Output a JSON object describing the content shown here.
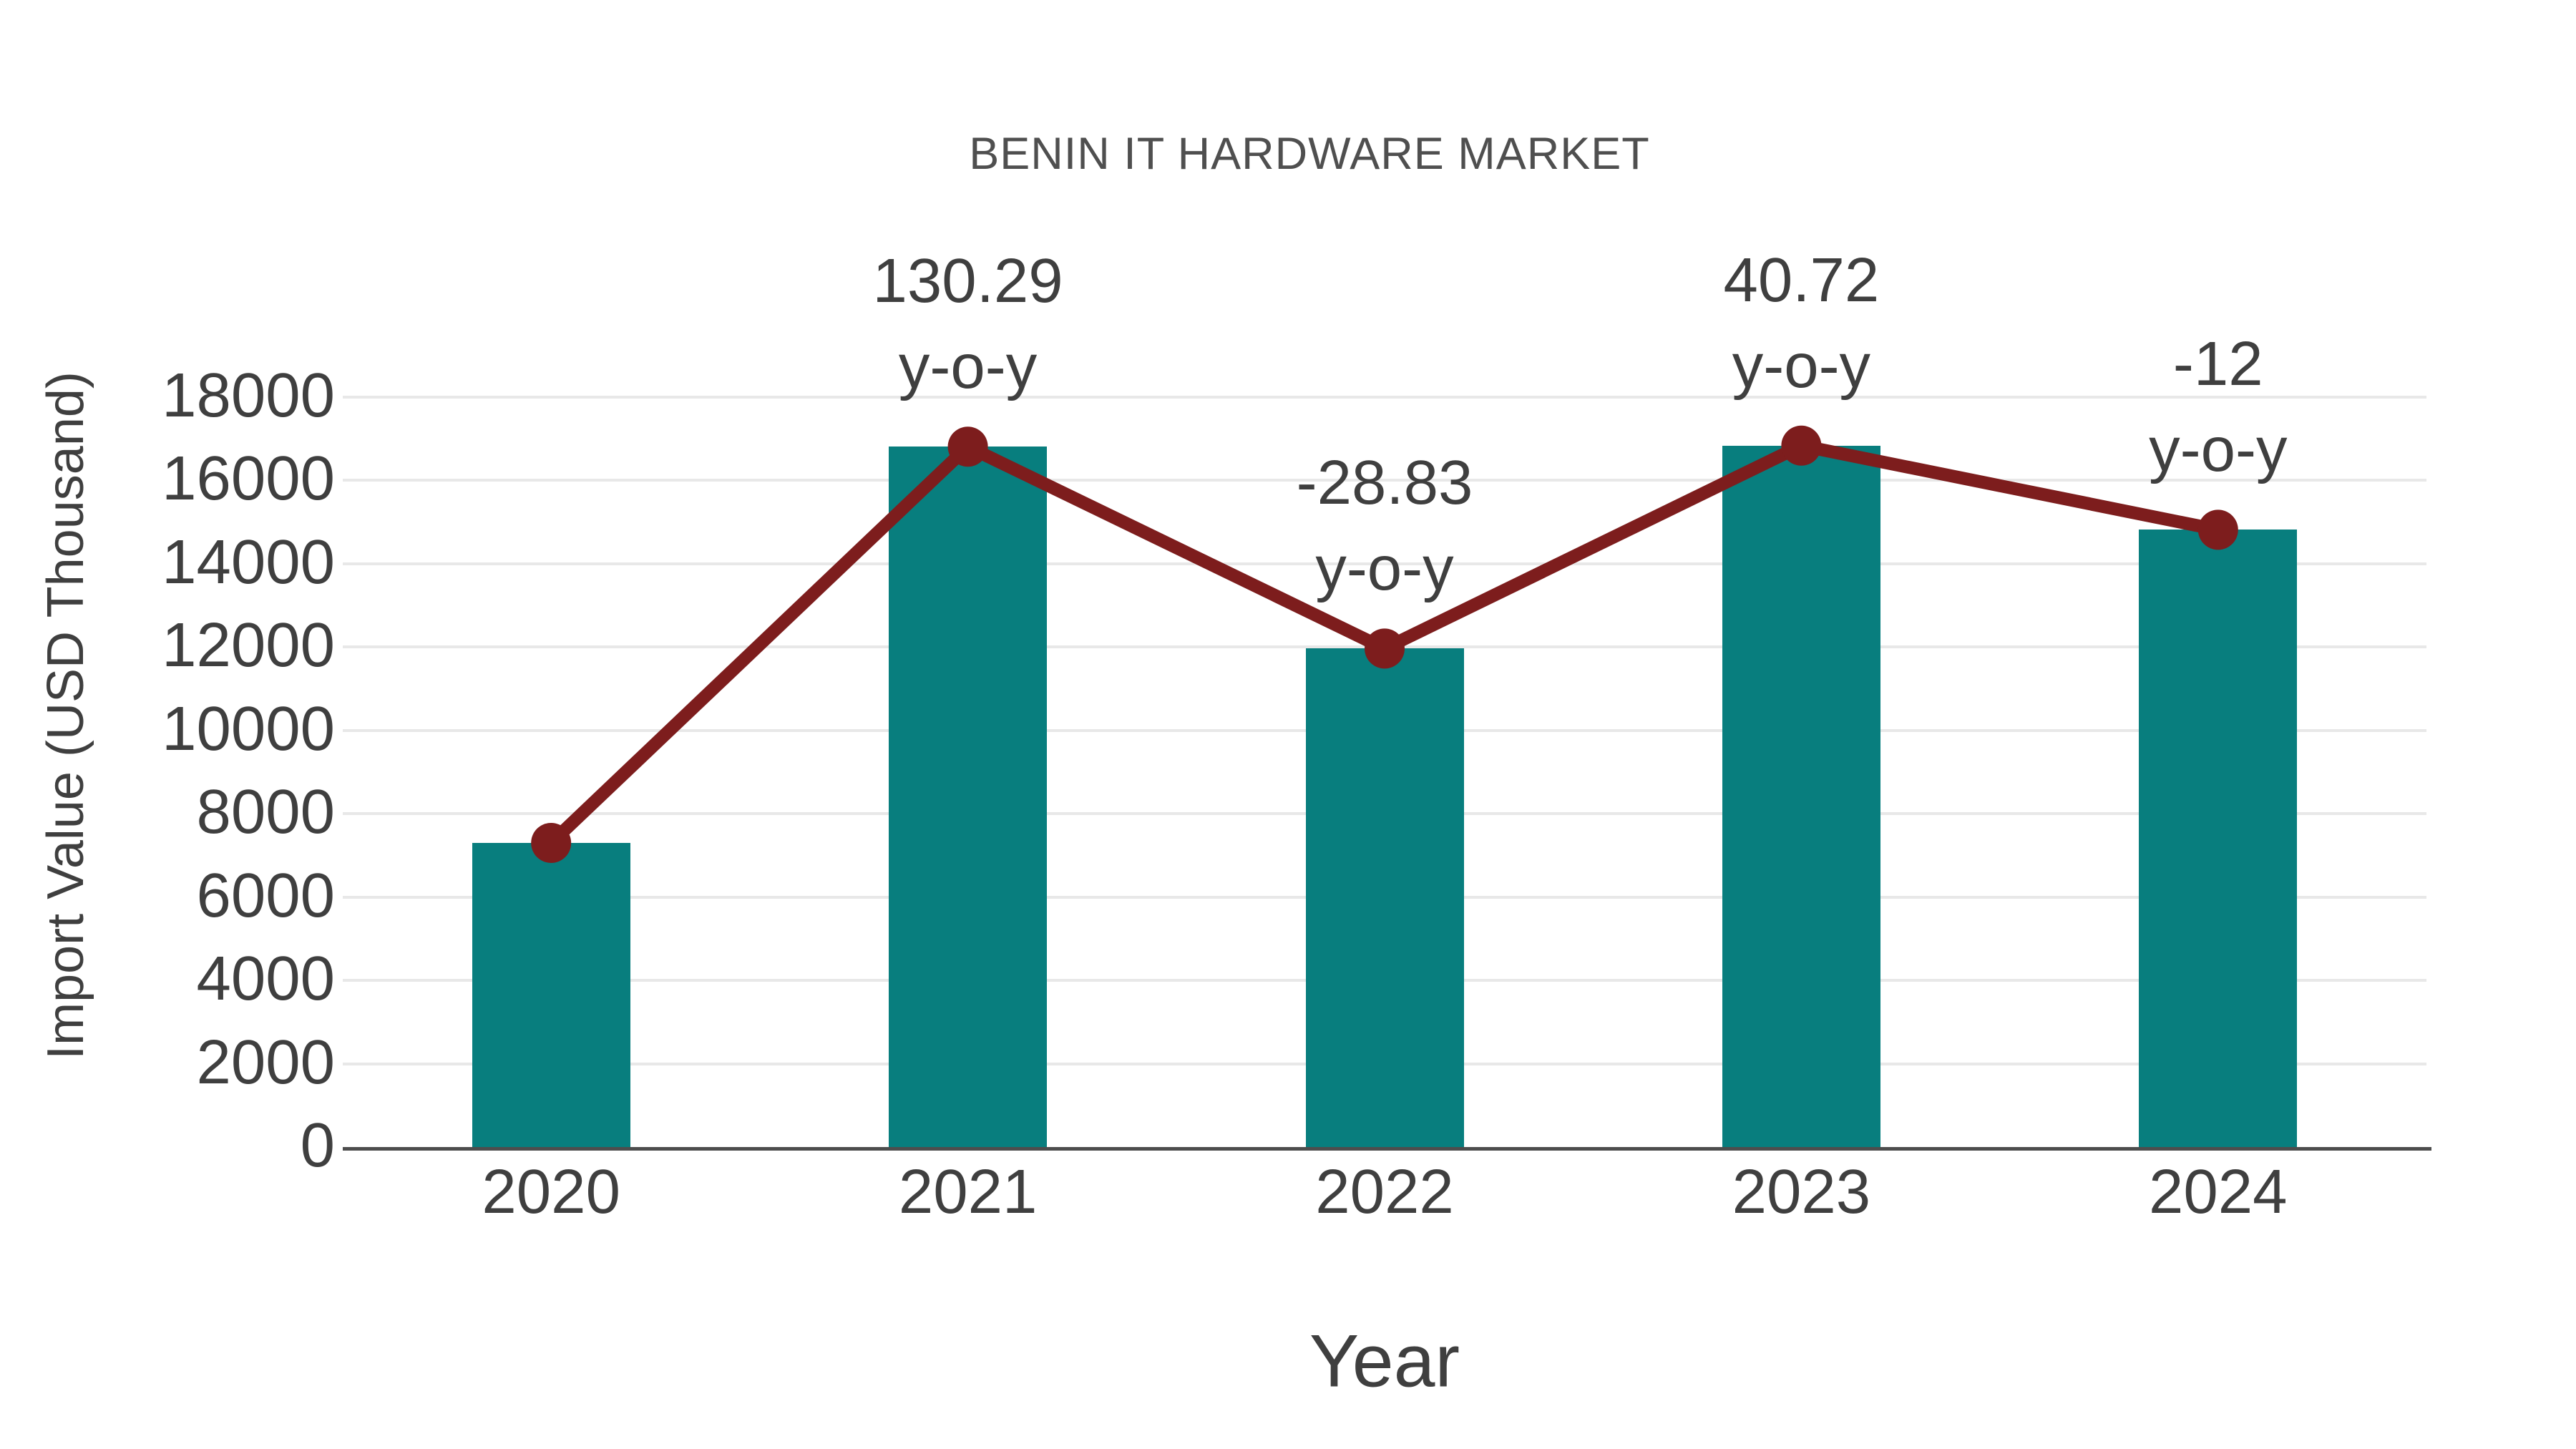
{
  "figure": {
    "title": "BENIN IT HARDWARE MARKET",
    "xlabel": "Year",
    "ylabel": "Import Value (USD Thousand)"
  },
  "chart_data": {
    "type": "bar",
    "title": "BENIN IT HARDWARE MARKET",
    "xlabel": "Year",
    "ylabel": "Import Value (USD Thousand)",
    "categories": [
      "2020",
      "2021",
      "2022",
      "2023",
      "2024"
    ],
    "series": [
      {
        "name": "Import Value (USD Thousand)",
        "type": "bar",
        "color": "#087e7e",
        "values": [
          7300,
          16811,
          11965,
          16836,
          14816
        ]
      },
      {
        "name": "Import Value trend line",
        "type": "line",
        "color": "#7d1d1d",
        "values": [
          7300,
          16811,
          11965,
          16836,
          14816
        ]
      }
    ],
    "annotations": [
      {
        "category": "2021",
        "value_text": "130.29",
        "suffix_text": "y-o-y"
      },
      {
        "category": "2022",
        "value_text": "-28.83",
        "suffix_text": "y-o-y"
      },
      {
        "category": "2023",
        "value_text": "40.72",
        "suffix_text": "y-o-y"
      },
      {
        "category": "2024",
        "value_text": "-12",
        "suffix_text": "y-o-y"
      }
    ],
    "ylim": [
      0,
      18000
    ],
    "ytick_step": 2000,
    "ytick_labels": [
      "0",
      "2000",
      "4000",
      "6000",
      "8000",
      "10000",
      "12000",
      "14000",
      "16000",
      "18000"
    ],
    "grid": true,
    "legend": false
  },
  "colors": {
    "bar": "#087e7e",
    "line": "#7d1d1d",
    "grid": "#e8e8e8",
    "axis": "#4d4d4d",
    "tick_text": "#3f3f3f",
    "title_text": "#4f4f4f",
    "background": "#ffffff"
  }
}
